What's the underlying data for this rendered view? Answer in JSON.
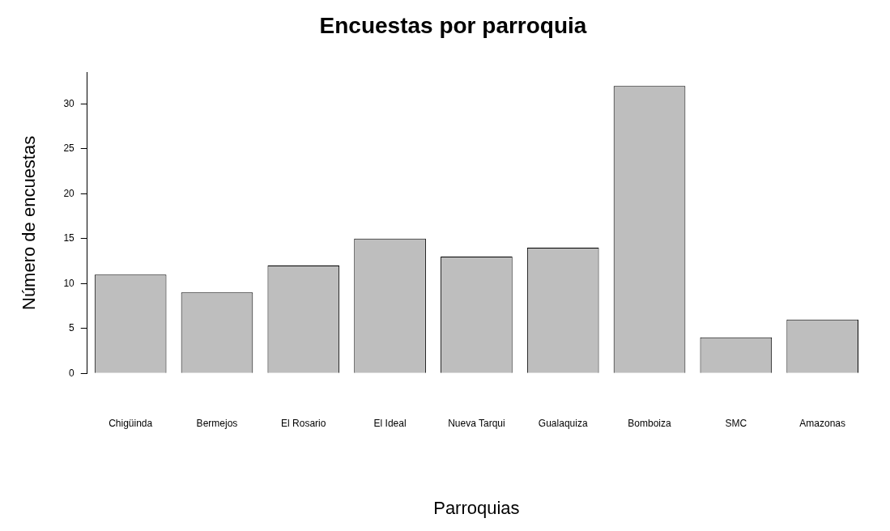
{
  "chart_data": {
    "type": "bar",
    "title": "Encuestas por parroquia",
    "xlabel": "Parroquias",
    "ylabel": "Número de encuestas",
    "categories": [
      "Chigüinda",
      "Bermejos",
      "El Rosario",
      "El Ideal",
      "Nueva Tarqui",
      "Gualaquiza",
      "Bomboiza",
      "SMC",
      "Amazonas"
    ],
    "values": [
      11,
      9,
      12,
      15,
      13,
      14,
      32,
      4,
      6
    ],
    "color": "#bebebe",
    "ylim": [
      0,
      33.5
    ],
    "yticks": [
      0,
      5,
      10,
      15,
      20,
      25,
      30
    ],
    "grid": false,
    "legend": false
  }
}
